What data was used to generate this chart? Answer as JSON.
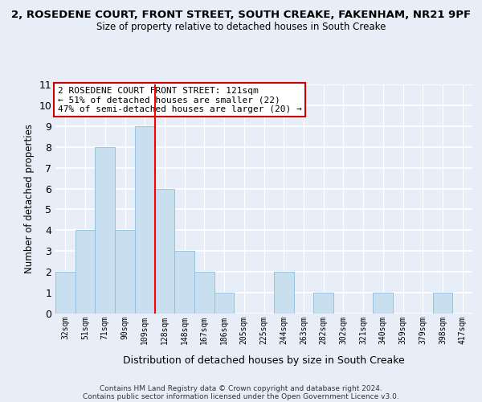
{
  "title_line1": "2, ROSEDENE COURT, FRONT STREET, SOUTH CREAKE, FAKENHAM, NR21 9PF",
  "title_line2": "Size of property relative to detached houses in South Creake",
  "xlabel": "Distribution of detached houses by size in South Creake",
  "ylabel": "Number of detached properties",
  "bin_labels": [
    "32sqm",
    "51sqm",
    "71sqm",
    "90sqm",
    "109sqm",
    "128sqm",
    "148sqm",
    "167sqm",
    "186sqm",
    "205sqm",
    "225sqm",
    "244sqm",
    "263sqm",
    "282sqm",
    "302sqm",
    "321sqm",
    "340sqm",
    "359sqm",
    "379sqm",
    "398sqm",
    "417sqm"
  ],
  "bar_heights": [
    2,
    4,
    8,
    4,
    9,
    6,
    3,
    2,
    1,
    0,
    0,
    2,
    0,
    1,
    0,
    0,
    1,
    0,
    0,
    1,
    0
  ],
  "bar_color": "#c8dff0",
  "bar_edgecolor": "#90bcd8",
  "vline_index": 5,
  "vline_color": "red",
  "annotation_title": "2 ROSEDENE COURT FRONT STREET: 121sqm",
  "annotation_line2": "← 51% of detached houses are smaller (22)",
  "annotation_line3": "47% of semi-detached houses are larger (20) →",
  "ylim": [
    0,
    11
  ],
  "yticks": [
    0,
    1,
    2,
    3,
    4,
    5,
    6,
    7,
    8,
    9,
    10,
    11
  ],
  "footer_line1": "Contains HM Land Registry data © Crown copyright and database right 2024.",
  "footer_line2": "Contains public sector information licensed under the Open Government Licence v3.0.",
  "background_color": "#e8eef8",
  "plot_background": "#e8eef8",
  "grid_color": "white",
  "annotation_box_color": "white",
  "annotation_box_edgecolor": "#cc0000"
}
